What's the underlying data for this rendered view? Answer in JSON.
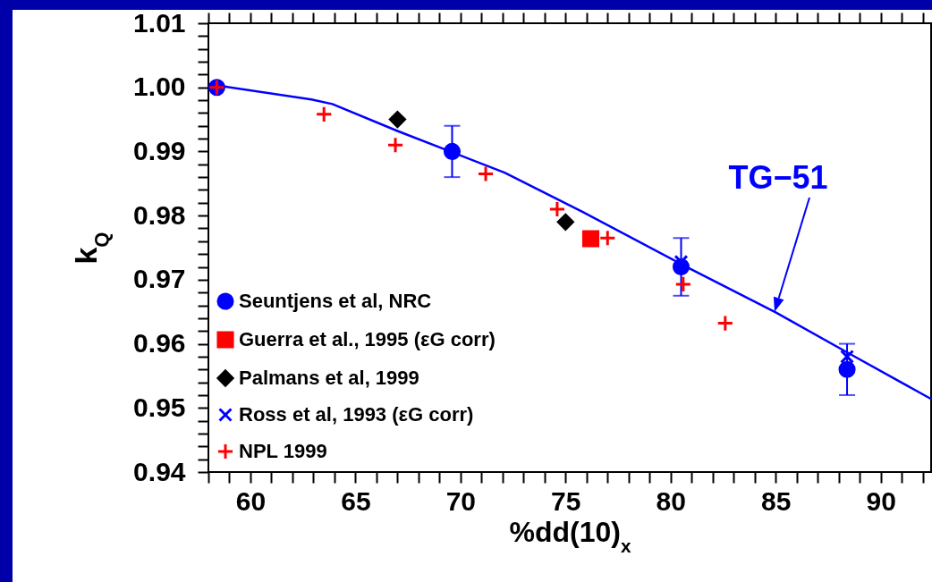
{
  "chart_data": {
    "type": "scatter",
    "xlabel": "%dd(10)$_{x}$",
    "ylabel": "k$_{Q}$",
    "xlim": [
      58,
      92.4
    ],
    "ylim": [
      0.94,
      1.01
    ],
    "xticks": [
      {
        "value": 58,
        "label": null
      },
      {
        "value": 59,
        "label": null
      },
      60,
      {
        "value": 61,
        "label": null
      },
      {
        "value": 62,
        "label": null
      },
      {
        "value": 63,
        "label": null
      },
      {
        "value": 64,
        "label": null
      },
      65,
      {
        "value": 66,
        "label": null
      },
      {
        "value": 67,
        "label": null
      },
      {
        "value": 68,
        "label": null
      },
      {
        "value": 69,
        "label": null
      },
      70,
      {
        "value": 71,
        "label": null
      },
      {
        "value": 72,
        "label": null
      },
      {
        "value": 73,
        "label": null
      },
      {
        "value": 74,
        "label": null
      },
      75,
      {
        "value": 76,
        "label": null
      },
      {
        "value": 77,
        "label": null
      },
      {
        "value": 78,
        "label": null
      },
      {
        "value": 79,
        "label": null
      },
      80,
      {
        "value": 81,
        "label": null
      },
      {
        "value": 82,
        "label": null
      },
      {
        "value": 83,
        "label": null
      },
      {
        "value": 84,
        "label": null
      },
      85,
      {
        "value": 86,
        "label": null
      },
      {
        "value": 87,
        "label": null
      },
      {
        "value": 88,
        "label": null
      },
      {
        "value": 89,
        "label": null
      },
      90,
      {
        "value": 91,
        "label": null
      },
      {
        "value": 92,
        "label": null
      }
    ],
    "yticks": [
      0.94,
      {
        "value": 0.942,
        "label": null
      },
      {
        "value": 0.944,
        "label": null
      },
      {
        "value": 0.946,
        "label": null
      },
      {
        "value": 0.948,
        "label": null
      },
      0.95,
      {
        "value": 0.952,
        "label": null
      },
      {
        "value": 0.954,
        "label": null
      },
      {
        "value": 0.956,
        "label": null
      },
      {
        "value": 0.958,
        "label": null
      },
      0.96,
      {
        "value": 0.962,
        "label": null
      },
      {
        "value": 0.964,
        "label": null
      },
      {
        "value": 0.966,
        "label": null
      },
      {
        "value": 0.968,
        "label": null
      },
      0.97,
      {
        "value": 0.972,
        "label": null
      },
      {
        "value": 0.974,
        "label": null
      },
      {
        "value": 0.976,
        "label": null
      },
      {
        "value": 0.978,
        "label": null
      },
      0.98,
      {
        "value": 0.982,
        "label": null
      },
      {
        "value": 0.984,
        "label": null
      },
      {
        "value": 0.986,
        "label": null
      },
      {
        "value": 0.988,
        "label": null
      },
      0.99,
      {
        "value": 0.992,
        "label": null
      },
      {
        "value": 0.994,
        "label": null
      },
      {
        "value": 0.996,
        "label": null
      },
      {
        "value": 0.998,
        "label": null
      },
      {
        "value": 1,
        "label": "1.00"
      },
      {
        "value": 1.002,
        "label": null
      },
      {
        "value": 1.004,
        "label": null
      },
      {
        "value": 1.006,
        "label": null
      },
      {
        "value": 1.008,
        "label": null
      },
      1.01
    ],
    "legend": "bottom left",
    "series": [
      {
        "type": "line",
        "color": "#0000ff",
        "marker": "none",
        "x": [
          58.4,
          62.9,
          63.9,
          67.0,
          72.1,
          75.8,
          80.7,
          85.0,
          88.6,
          92.4
        ],
        "values": [
          1.0003,
          0.9981,
          0.9974,
          0.9932,
          0.9867,
          0.9806,
          0.9721,
          0.9649,
          0.9583,
          0.9514
        ]
      },
      {
        "name": "Seuntjens et al, NRC",
        "type": "scatter",
        "color": "#0000ff",
        "marker": "circle",
        "x": [
          58.4,
          69.6,
          80.5,
          88.4
        ],
        "values": [
          1.0,
          0.99,
          0.972,
          0.956
        ],
        "errors": [
          null,
          0.004,
          0.0045,
          0.004
        ]
      },
      {
        "name": "Guerra et al., 1995 (εG corr)",
        "type": "scatter",
        "color": "#ff0000",
        "marker": "square",
        "x": [
          76.2
        ],
        "values": [
          0.9764
        ]
      },
      {
        "name": "Palmans et al, 1999",
        "type": "scatter",
        "color": "#000000",
        "marker": "diamond",
        "x": [
          67.0,
          75.0
        ],
        "values": [
          0.995,
          0.979
        ]
      },
      {
        "name": "Ross et al, 1993 (εG corr)",
        "type": "scatter",
        "color": "#0000ff",
        "marker": "cross",
        "x": [
          80.5,
          88.4
        ],
        "values": [
          0.9728,
          0.958
        ]
      },
      {
        "name": "NPL 1999",
        "type": "scatter",
        "color": "#ff0000",
        "marker": "plus",
        "x": [
          58.4,
          63.5,
          66.9,
          71.2,
          74.6,
          77.0,
          80.6,
          82.6
        ],
        "values": [
          1.0,
          0.9958,
          0.991,
          0.9865,
          0.981,
          0.9765,
          0.9693,
          0.9632
        ]
      }
    ],
    "annotations": [
      "TG−51"
    ]
  }
}
